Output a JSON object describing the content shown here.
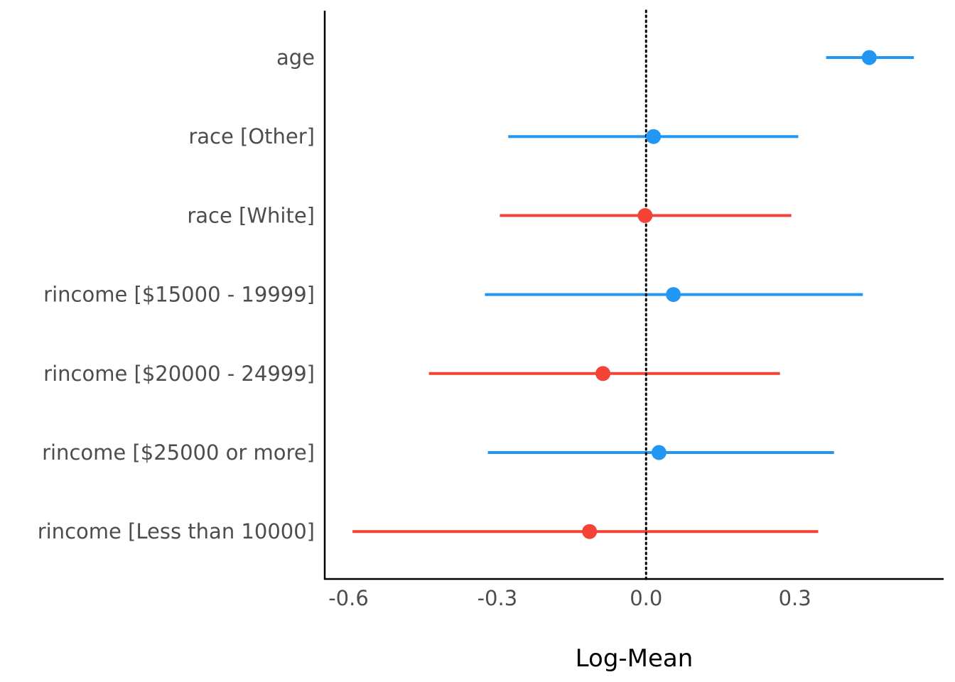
{
  "chart_data": {
    "type": "forest",
    "xlabel": "Log-Mean",
    "xlim": [
      -0.648,
      0.6
    ],
    "xticks": [
      -0.6,
      -0.3,
      0.0,
      0.3
    ],
    "xtick_labels": [
      "-0.6",
      "-0.3",
      "0.0",
      "0.3"
    ],
    "reference_line": 0.0,
    "grid": false,
    "legend": "none",
    "colors": {
      "positive": "#2196F3",
      "negative": "#F44336",
      "axis": "#000000",
      "label": "#4d4d4d"
    },
    "terms": [
      {
        "label": "age",
        "estimate": 0.45,
        "conf_low": 0.363,
        "conf_high": 0.54,
        "direction": "positive"
      },
      {
        "label": "race [Other]",
        "estimate": 0.015,
        "conf_low": -0.278,
        "conf_high": 0.307,
        "direction": "positive"
      },
      {
        "label": "race [White]",
        "estimate": -0.002,
        "conf_low": -0.295,
        "conf_high": 0.293,
        "direction": "negative"
      },
      {
        "label": "rincome [$15000 - 19999]",
        "estimate": 0.055,
        "conf_low": -0.325,
        "conf_high": 0.437,
        "direction": "positive"
      },
      {
        "label": "rincome [$20000 - 24999]",
        "estimate": -0.087,
        "conf_low": -0.438,
        "conf_high": 0.27,
        "direction": "negative"
      },
      {
        "label": "rincome [$25000 or more]",
        "estimate": 0.026,
        "conf_low": -0.319,
        "conf_high": 0.379,
        "direction": "positive"
      },
      {
        "label": "rincome [Less than 10000]",
        "estimate": -0.114,
        "conf_low": -0.592,
        "conf_high": 0.347,
        "direction": "negative"
      }
    ]
  }
}
